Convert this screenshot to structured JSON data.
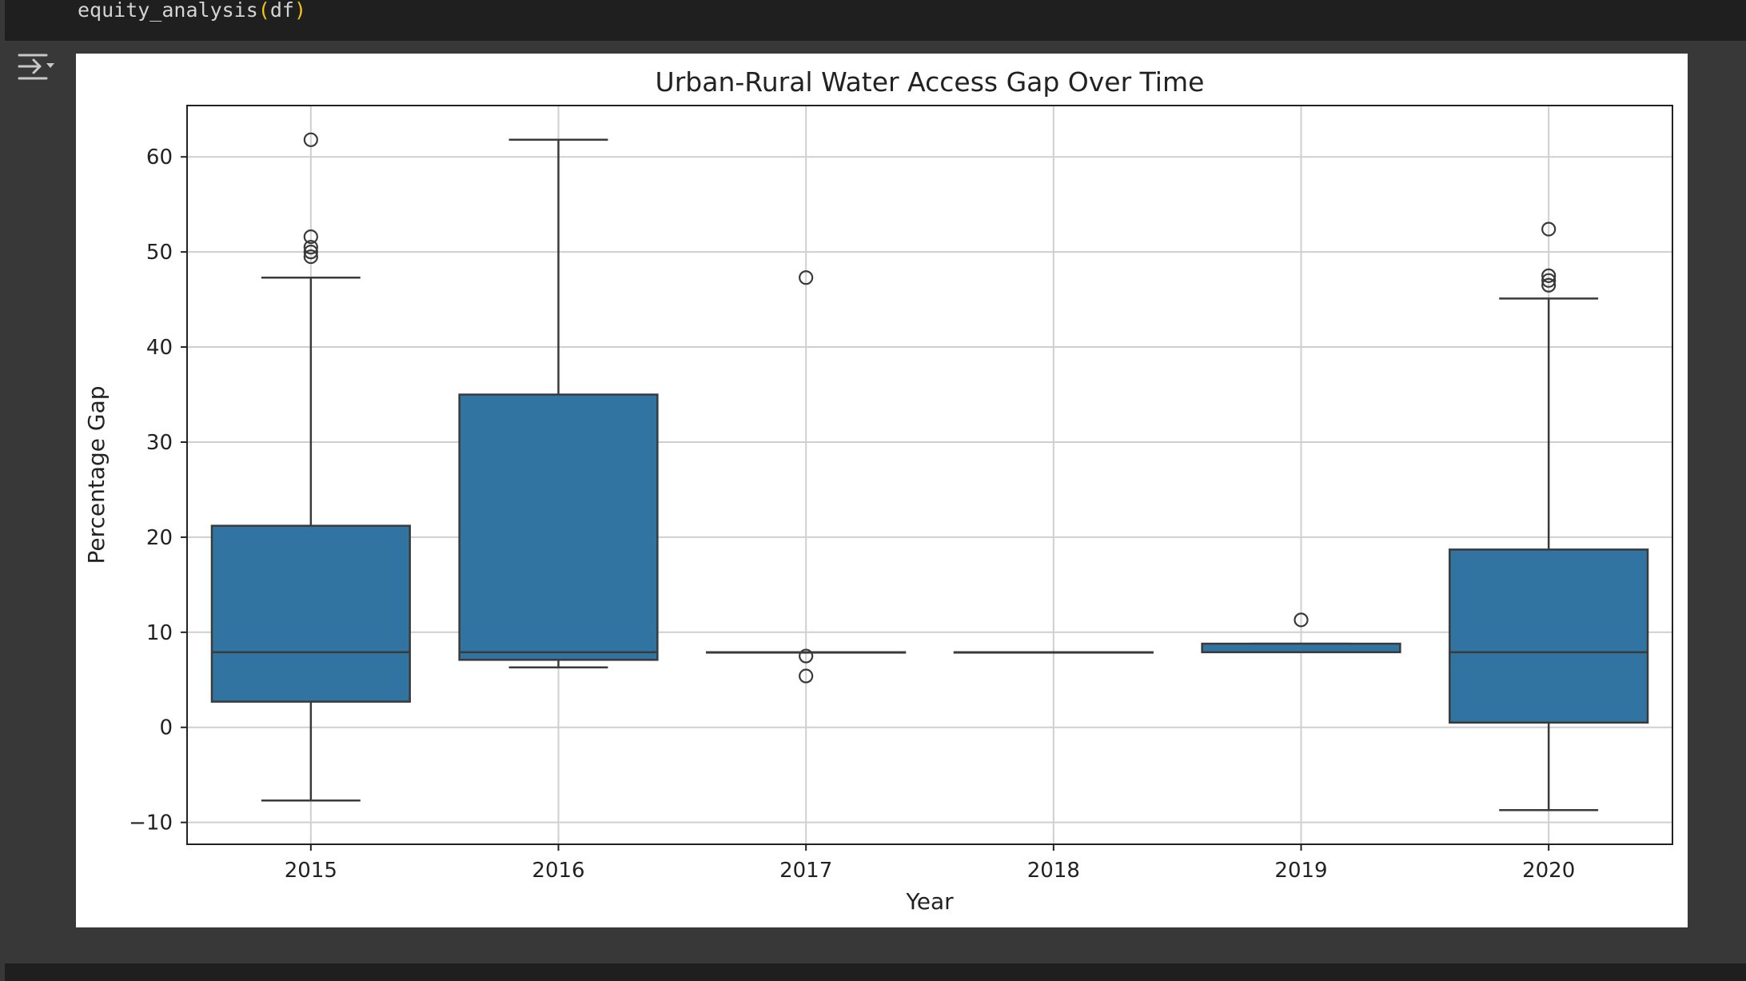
{
  "code": {
    "func": "equity_analysis",
    "open": "(",
    "arg": "df",
    "close": ")"
  },
  "output_toggle_icon": "collapse-output-icon",
  "colors": {
    "box_fill": "#3274a1",
    "box_edge": "#3a3a3a",
    "grid": "#cfcfcf",
    "background_dark": "#383838",
    "code_bg": "#1f1f1f",
    "paren": "#f0c419"
  },
  "chart_data": {
    "type": "box",
    "title": "Urban-Rural Water Access Gap Over Time",
    "xlabel": "Year",
    "ylabel": "Percentage Gap",
    "ylim": [
      -12.3,
      65.4
    ],
    "yticks": [
      -10,
      0,
      10,
      20,
      30,
      40,
      50,
      60
    ],
    "ytick_labels": [
      "−10",
      "0",
      "10",
      "20",
      "30",
      "40",
      "50",
      "60"
    ],
    "grid": true,
    "categories": [
      "2015",
      "2016",
      "2017",
      "2018",
      "2019",
      "2020"
    ],
    "boxes": [
      {
        "category": "2015",
        "whisker_low": -7.7,
        "q1": 2.7,
        "median": 7.9,
        "q3": 21.2,
        "whisker_high": 47.3,
        "outliers": [
          49.5,
          50.0,
          50.5,
          51.6,
          61.8
        ]
      },
      {
        "category": "2016",
        "whisker_low": 6.3,
        "q1": 7.1,
        "median": 7.9,
        "q3": 35.0,
        "whisker_high": 61.8,
        "outliers": []
      },
      {
        "category": "2017",
        "whisker_low": 7.9,
        "q1": 7.9,
        "median": 7.9,
        "q3": 7.9,
        "whisker_high": 7.9,
        "outliers": [
          5.4,
          7.5,
          47.3
        ]
      },
      {
        "category": "2018",
        "whisker_low": 7.9,
        "q1": 7.9,
        "median": 7.9,
        "q3": 7.9,
        "whisker_high": 7.9,
        "outliers": []
      },
      {
        "category": "2019",
        "whisker_low": 7.9,
        "q1": 7.9,
        "median": 7.9,
        "q3": 8.8,
        "whisker_high": 8.8,
        "outliers": [
          11.3
        ]
      },
      {
        "category": "2020",
        "whisker_low": -8.7,
        "q1": 0.5,
        "median": 7.9,
        "q3": 18.7,
        "whisker_high": 45.1,
        "outliers": [
          46.5,
          47.0,
          47.5,
          52.4
        ]
      }
    ]
  }
}
